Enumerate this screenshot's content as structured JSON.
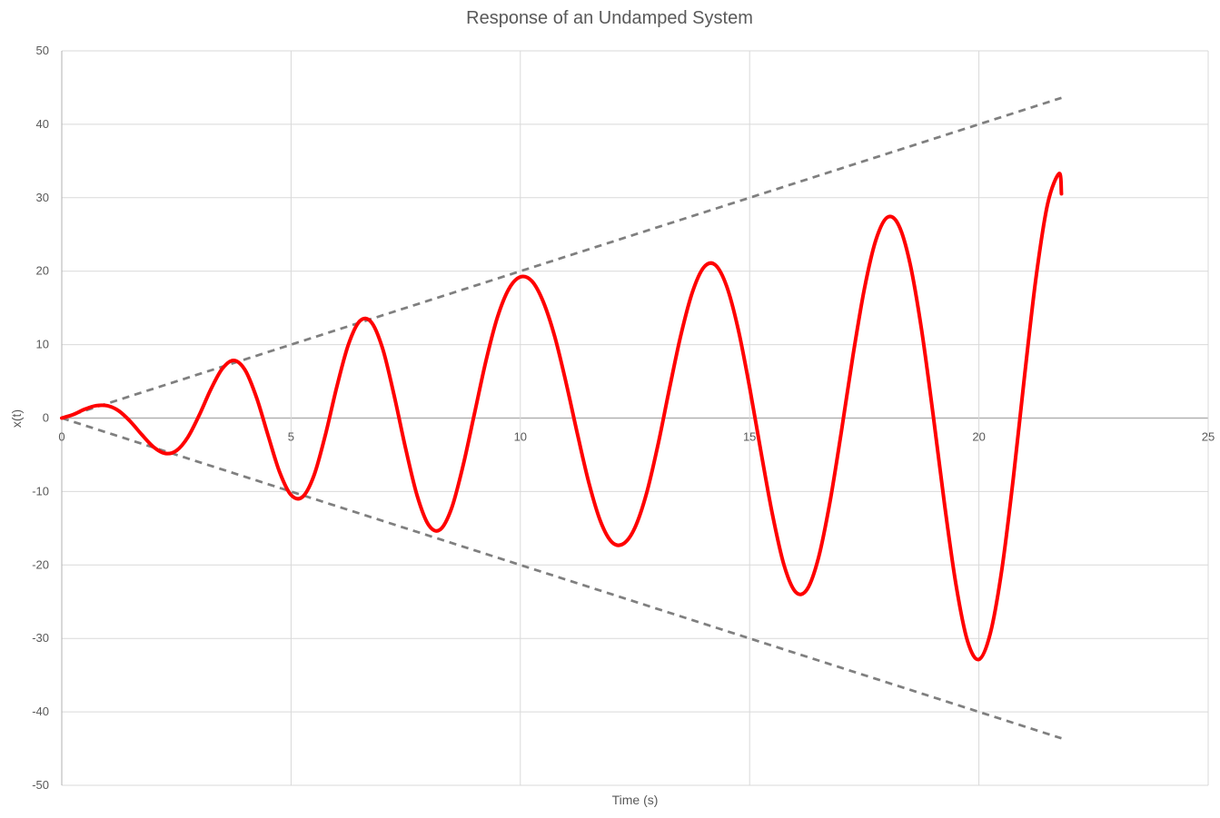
{
  "chart_data": {
    "type": "line",
    "title": "Response of an Undamped System",
    "xlabel": "Time (s)",
    "ylabel": "x(t)",
    "xlim": [
      0,
      25
    ],
    "ylim": [
      -50,
      50
    ],
    "x_ticks": [
      0,
      5,
      10,
      15,
      20,
      25
    ],
    "y_ticks": [
      50,
      40,
      30,
      20,
      10,
      0,
      -10,
      -20,
      -30,
      -40,
      -50
    ],
    "x_tick_labels": [
      "0",
      "5",
      "10",
      "15",
      "20",
      "25"
    ],
    "y_tick_labels": [
      "50",
      "40",
      "30",
      "20",
      "10",
      "0",
      "-10",
      "-20",
      "-30",
      "-40",
      "-50"
    ],
    "grid": true,
    "legend": "none",
    "series": [
      {
        "color": "#ff0000",
        "style": "solid",
        "x": [
          0,
          0.25,
          0.5,
          0.75,
          1.0,
          1.25,
          1.5,
          1.75,
          2.0,
          2.25,
          2.5,
          2.75,
          3.0,
          3.25,
          3.5,
          3.75,
          4.0,
          4.25,
          4.5,
          4.75,
          5.0,
          5.25,
          5.5,
          5.75,
          6.0,
          6.25,
          6.5,
          6.75,
          7.0,
          7.25,
          7.5,
          7.75,
          8.0,
          8.25,
          8.5,
          8.75,
          9.0,
          9.25,
          9.5,
          9.75,
          10.0,
          10.25,
          10.5,
          10.75,
          11.0,
          11.25,
          11.5,
          11.75,
          12.0,
          12.25,
          12.5,
          12.75,
          13.0,
          13.25,
          13.5,
          13.75,
          14.0,
          14.25,
          14.5,
          14.75,
          15.0,
          15.25,
          15.5,
          15.75,
          16.0,
          16.25,
          16.5,
          16.75,
          17.0,
          17.25,
          17.5,
          17.75,
          18.0,
          18.25,
          18.5,
          18.75,
          19.0,
          19.25,
          19.5,
          19.75,
          20.0,
          20.25,
          20.5,
          20.75,
          21.0,
          21.25,
          21.5,
          21.75,
          21.8
        ],
        "y": [
          0,
          0.48,
          1.2,
          1.69,
          1.67,
          0.95,
          -0.49,
          -2.29,
          -3.93,
          -4.81,
          -4.43,
          -2.6,
          0.43,
          3.9,
          6.72,
          7.85,
          6.51,
          2.74,
          -2.39,
          -7.34,
          -10.47,
          -10.73,
          -7.81,
          -2.26,
          4.31,
          10.0,
          13.22,
          13.06,
          9.4,
          3.02,
          -4.18,
          -10.57,
          -14.56,
          -15.19,
          -12.29,
          -6.5,
          0.62,
          7.78,
          13.72,
          17.59,
          19.22,
          18.66,
          15.83,
          11.1,
          4.74,
          -2.3,
          -8.95,
          -14.09,
          -16.91,
          -17.1,
          -14.9,
          -10.3,
          -3.69,
          3.96,
          11.28,
          17.1,
          20.52,
          20.86,
          17.94,
          12.12,
          4.19,
          -4.69,
          -13.19,
          -20.02,
          -23.65,
          -23.35,
          -19.07,
          -11.5,
          -1.87,
          8.35,
          17.51,
          24.18,
          27.32,
          26.27,
          20.99,
          12.02,
          0.54,
          -11.72,
          -22.67,
          -30.32,
          -32.86,
          -29.28,
          -20.64,
          -8.2,
          6.0,
          19.35,
          29.19,
          33.29,
          30.54
        ]
      },
      {
        "color": "#7f7f7f",
        "style": "dashed",
        "x": [
          0,
          21.8
        ],
        "y": [
          0,
          43.6
        ]
      },
      {
        "color": "#7f7f7f",
        "style": "dashed",
        "x": [
          0,
          21.8
        ],
        "y": [
          0,
          -43.6
        ]
      }
    ]
  }
}
